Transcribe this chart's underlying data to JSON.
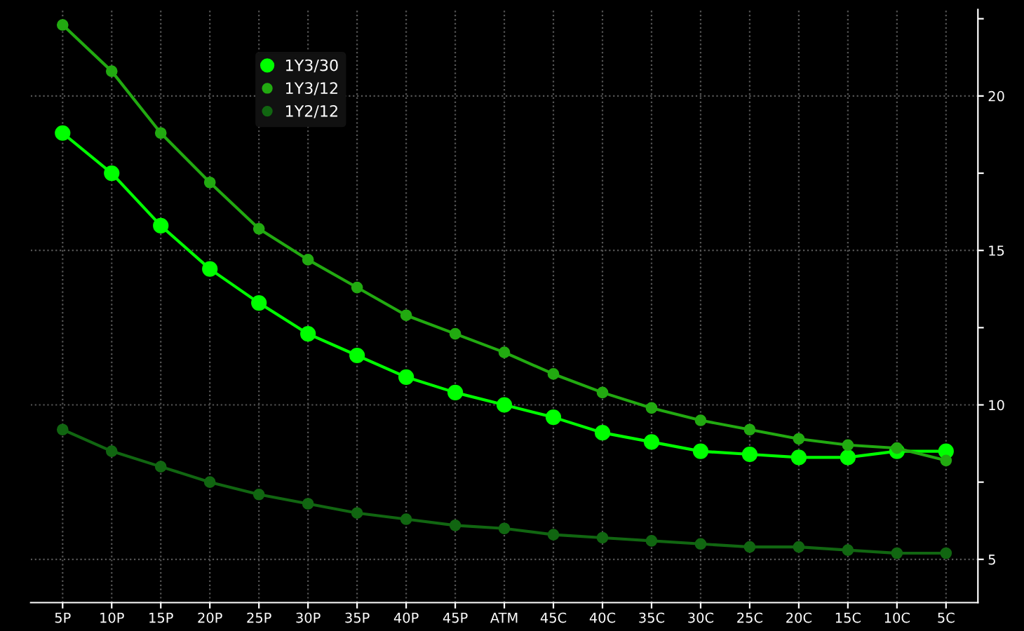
{
  "chart_data": {
    "type": "line",
    "categories": [
      "5P",
      "10P",
      "15P",
      "20P",
      "25P",
      "30P",
      "35P",
      "40P",
      "45P",
      "ATM",
      "45C",
      "40C",
      "35C",
      "30C",
      "25C",
      "20C",
      "15C",
      "10C",
      "5C"
    ],
    "series": [
      {
        "name": "1Y3/30",
        "color": "#00ff00",
        "values": [
          18.8,
          17.5,
          15.8,
          14.4,
          13.3,
          12.3,
          11.6,
          10.9,
          10.4,
          10.0,
          9.6,
          9.1,
          8.8,
          8.5,
          8.4,
          8.3,
          8.3,
          8.5,
          8.5
        ]
      },
      {
        "name": "1Y3/12",
        "color": "#22aa11",
        "values": [
          22.3,
          20.8,
          18.8,
          17.2,
          15.7,
          14.7,
          13.8,
          12.9,
          12.3,
          11.7,
          11.0,
          10.4,
          9.9,
          9.5,
          9.2,
          8.9,
          8.7,
          8.6,
          8.2
        ]
      },
      {
        "name": "1Y2/12",
        "color": "#116611",
        "values": [
          9.2,
          8.5,
          8.0,
          7.5,
          7.1,
          6.8,
          6.5,
          6.3,
          6.1,
          6.0,
          5.8,
          5.7,
          5.6,
          5.5,
          5.4,
          5.4,
          5.3,
          5.2,
          5.2
        ]
      }
    ],
    "ylim": [
      3.6,
      22.8
    ],
    "yticks": [
      5,
      {
        "value": 7.5,
        "label": null
      },
      10,
      {
        "value": 12.5,
        "label": null
      },
      15,
      {
        "value": 17.5,
        "label": null
      },
      20,
      {
        "value": 22.5,
        "label": null
      }
    ],
    "grid": true,
    "legend": "top left",
    "marker": "circle",
    "line_style": "solid"
  }
}
